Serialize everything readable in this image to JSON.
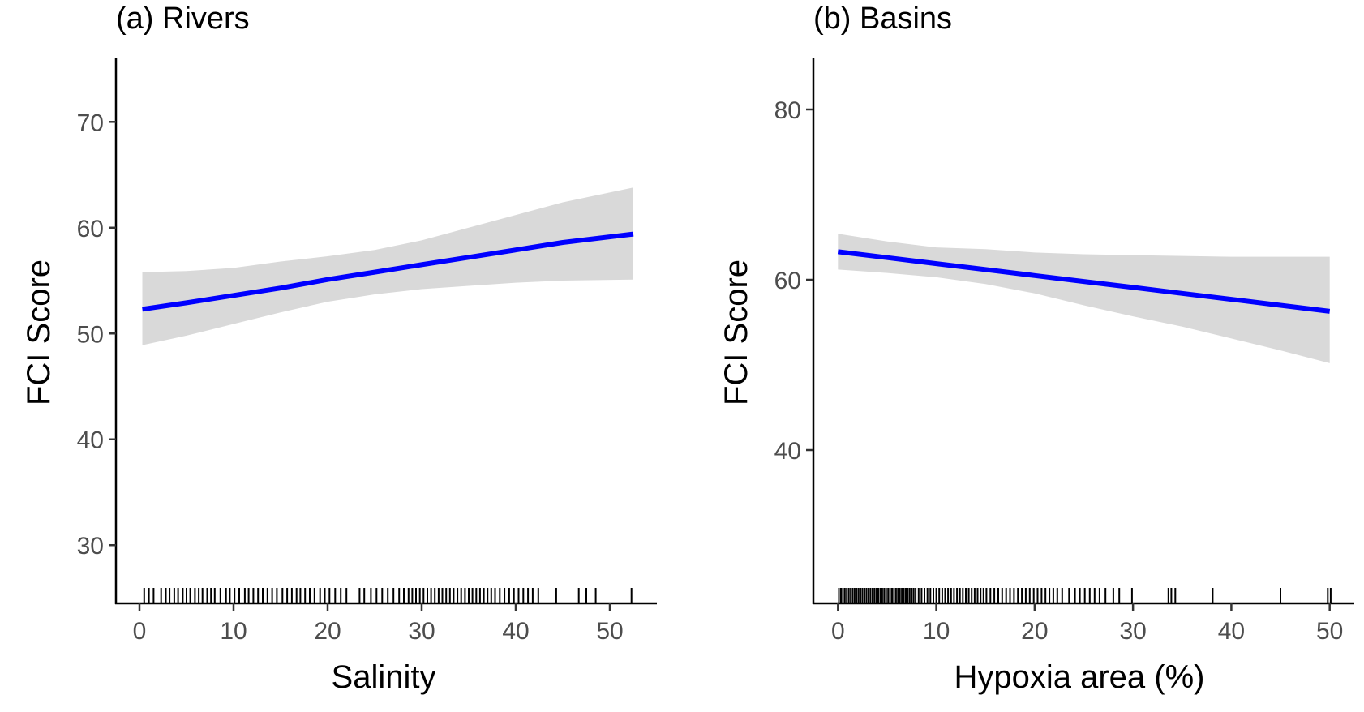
{
  "chart_data": [
    {
      "type": "line",
      "title": "(a) Rivers",
      "xlabel": "Salinity",
      "ylabel": "FCI Score",
      "xlim": [
        -2.5,
        55
      ],
      "ylim": [
        24.5,
        76
      ],
      "xticks": [
        0,
        10,
        20,
        30,
        40,
        50
      ],
      "yticks": [
        30,
        40,
        50,
        60,
        70
      ],
      "xtick_labels": [
        "0",
        "10",
        "20",
        "30",
        "40",
        "50"
      ],
      "ytick_labels": [
        "30",
        "40",
        "50",
        "60",
        "70"
      ],
      "grid": false,
      "series": [
        {
          "kind": "fitted_line_with_ci",
          "line_color": "#0000ff",
          "band_color": "#d9d9d9",
          "x": [
            0.3,
            5,
            10,
            15,
            20,
            25,
            30,
            35,
            40,
            45,
            52.5
          ],
          "fit": [
            52.3,
            52.9,
            53.6,
            54.3,
            55.1,
            55.8,
            56.5,
            57.2,
            57.9,
            58.6,
            59.4
          ],
          "lower": [
            48.9,
            49.8,
            50.9,
            52.0,
            53.0,
            53.7,
            54.2,
            54.5,
            54.8,
            55.0,
            55.1
          ],
          "upper": [
            55.8,
            55.9,
            56.2,
            56.8,
            57.3,
            57.9,
            58.8,
            60.0,
            61.2,
            62.4,
            63.8
          ]
        }
      ],
      "rug": [
        0.5,
        1.0,
        1.5,
        2.3,
        2.8,
        3.2,
        3.7,
        4.1,
        4.6,
        5.0,
        5.4,
        5.9,
        6.3,
        6.7,
        7.2,
        7.6,
        8.0,
        8.6,
        9.2,
        9.6,
        10.1,
        10.6,
        11.2,
        11.6,
        12.1,
        12.6,
        13.1,
        13.6,
        14.1,
        14.6,
        15.2,
        15.7,
        16.2,
        16.7,
        17.1,
        17.6,
        18.1,
        18.6,
        19.2,
        19.7,
        20.2,
        20.8,
        21.4,
        22.0,
        23.4,
        23.9,
        24.6,
        25.2,
        25.8,
        26.4,
        27.0,
        27.6,
        28.1,
        28.6,
        29.0,
        29.4,
        29.8,
        30.2,
        30.6,
        31.0,
        31.4,
        31.8,
        32.2,
        32.6,
        33.0,
        33.4,
        33.8,
        34.2,
        34.6,
        35.0,
        35.4,
        35.8,
        36.2,
        36.6,
        37.0,
        37.4,
        37.8,
        38.3,
        38.8,
        39.3,
        39.8,
        40.3,
        40.8,
        41.3,
        41.8,
        42.4,
        44.3,
        46.7,
        47.5,
        48.5,
        52.3
      ]
    },
    {
      "type": "line",
      "title": "(b) Basins",
      "xlabel": "Hypoxia area (%)",
      "ylabel": "FCI Score",
      "xlim": [
        -2.5,
        52.5
      ],
      "ylim": [
        22,
        86
      ],
      "xticks": [
        0,
        10,
        20,
        30,
        40,
        50
      ],
      "yticks": [
        40,
        60,
        80
      ],
      "xtick_labels": [
        "0",
        "10",
        "20",
        "30",
        "40",
        "50"
      ],
      "ytick_labels": [
        "40",
        "60",
        "80"
      ],
      "grid": false,
      "series": [
        {
          "kind": "fitted_line_with_ci",
          "line_color": "#0000ff",
          "band_color": "#d9d9d9",
          "x": [
            0,
            5,
            10,
            15,
            20,
            25,
            30,
            35,
            40,
            45,
            50
          ],
          "fit": [
            63.3,
            62.6,
            61.9,
            61.2,
            60.5,
            59.8,
            59.1,
            58.4,
            57.7,
            57.0,
            56.3
          ],
          "lower": [
            61.2,
            60.8,
            60.3,
            59.5,
            58.4,
            57.0,
            55.7,
            54.5,
            53.1,
            51.7,
            50.2
          ],
          "upper": [
            65.4,
            64.5,
            63.8,
            63.6,
            63.2,
            63.0,
            62.9,
            62.8,
            62.7,
            62.7,
            62.7
          ]
        }
      ],
      "rug": [
        0.1,
        0.3,
        0.5,
        0.7,
        0.9,
        1.1,
        1.3,
        1.5,
        1.7,
        1.9,
        2.1,
        2.3,
        2.5,
        2.7,
        2.9,
        3.1,
        3.3,
        3.5,
        3.7,
        3.9,
        4.1,
        4.3,
        4.5,
        4.7,
        4.9,
        5.1,
        5.3,
        5.5,
        5.7,
        5.9,
        6.1,
        6.3,
        6.5,
        6.7,
        6.9,
        7.1,
        7.3,
        7.5,
        7.7,
        7.9,
        8.2,
        8.5,
        8.8,
        9.1,
        9.4,
        9.7,
        10.0,
        10.3,
        10.6,
        10.9,
        11.2,
        11.5,
        11.8,
        12.1,
        12.4,
        12.7,
        13.0,
        13.3,
        13.6,
        13.9,
        14.2,
        14.5,
        14.8,
        15.1,
        15.5,
        15.9,
        16.3,
        16.7,
        17.1,
        17.5,
        17.9,
        18.3,
        18.7,
        19.1,
        19.5,
        19.9,
        20.3,
        20.7,
        21.1,
        21.5,
        21.9,
        22.3,
        22.8,
        23.5,
        24.1,
        24.6,
        25.1,
        25.6,
        26.1,
        26.6,
        27.2,
        28.0,
        28.6,
        29.9,
        33.6,
        33.9,
        34.3,
        38.1,
        45.0,
        49.8,
        50.1
      ]
    }
  ]
}
